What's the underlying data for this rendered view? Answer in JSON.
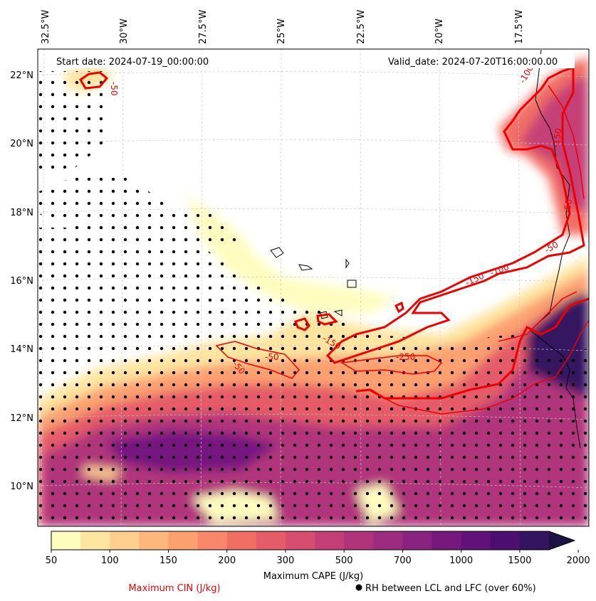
{
  "map": {
    "start_date": "Start date: 2024-07-19_00:00:00",
    "valid_date": "Valid_date: 2024-07-20T16:00:00.00",
    "lon_labels": [
      "32.5°W",
      "30°W",
      "27.5°W",
      "25°W",
      "22.5°W",
      "20°W",
      "17.5°W"
    ],
    "lat_labels": [
      "22°N",
      "20°N",
      "18°N",
      "16°N",
      "14°N",
      "12°N",
      "10°N"
    ],
    "cin_contour_labels": [
      "-50",
      "-50",
      "-50",
      "-50",
      "-100",
      "-100",
      "-150",
      "-150",
      "-250",
      "-150",
      "-50"
    ]
  },
  "colorbar": {
    "tick_labels": [
      "50",
      "100",
      "150",
      "200",
      "300",
      "500",
      "700",
      "1000",
      "1500",
      "2000"
    ],
    "colors": [
      "#fefdbf",
      "#fee5a0",
      "#fecf8e",
      "#fdb77d",
      "#fca06f",
      "#f8866a",
      "#f16e65",
      "#e55b68",
      "#d64d6f",
      "#c43f76",
      "#b1347b",
      "#9e2c7e",
      "#8a237f",
      "#76197f",
      "#611279",
      "#4b0f6f",
      "#341360",
      "#1e1245"
    ],
    "label": "Maximum CAPE (J/kg)"
  },
  "legend": {
    "cin_label": "Maximum CIN (J/kg)",
    "rh_label": "RH between LCL and LFC (over 60%)",
    "cin_color": "#ee0000"
  }
}
